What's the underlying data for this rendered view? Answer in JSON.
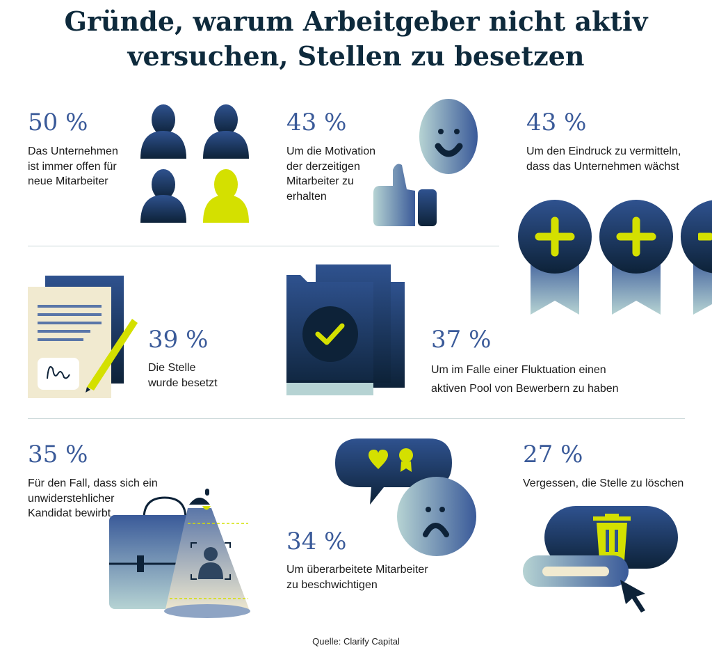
{
  "title": {
    "line1": "Gründe, warum Arbeitgeber nicht aktiv",
    "line2": "versuchen, Stellen zu besetzen"
  },
  "stats": [
    {
      "percent": "50 %",
      "lines": [
        "Das Unternehmen",
        "ist immer offen für",
        "neue Mitarbeiter"
      ],
      "icon": "people-icon"
    },
    {
      "percent": "43 %",
      "lines": [
        "Um die Motivation",
        "der derzeitigen",
        "Mitarbeiter zu",
        "erhalten"
      ],
      "icon": "thumbs-up-smiley-icon"
    },
    {
      "percent": "43 %",
      "lines": [
        "Um den Eindruck zu vermitteln,",
        "dass das Unternehmen wächst"
      ],
      "icon": "plus-badges-icon"
    },
    {
      "percent": "39 %",
      "lines": [
        "Die Stelle",
        "wurde besetzt"
      ],
      "icon": "signed-document-icon"
    },
    {
      "percent": "37 %",
      "lines": [
        "Um im Falle einer Fluktuation einen",
        "aktiven Pool von Bewerbern zu haben"
      ],
      "icon": "folder-check-icon"
    },
    {
      "percent": "35 %",
      "lines": [
        "Für den Fall, dass sich ein",
        "unwiderstehlicher",
        "Kandidat bewirbt"
      ],
      "icon": "briefcase-spotlight-icon"
    },
    {
      "percent": "34 %",
      "lines": [
        "Um überarbeitete Mitarbeiter",
        "zu beschwichtigen"
      ],
      "icon": "speech-bubble-sad-face-icon"
    },
    {
      "percent": "27 %",
      "lines": [
        "Vergessen, die Stelle zu löschen"
      ],
      "icon": "trash-delete-icon"
    }
  ],
  "source": "Quelle: Clarify Capital",
  "colors": {
    "title": "#0e2a3c",
    "percent": "#3a5a99",
    "accent": "#d4e000",
    "navy": "#0d2238",
    "blue": "#2f528f",
    "light": "#a9c8cc",
    "paper": "#f1ead0"
  }
}
